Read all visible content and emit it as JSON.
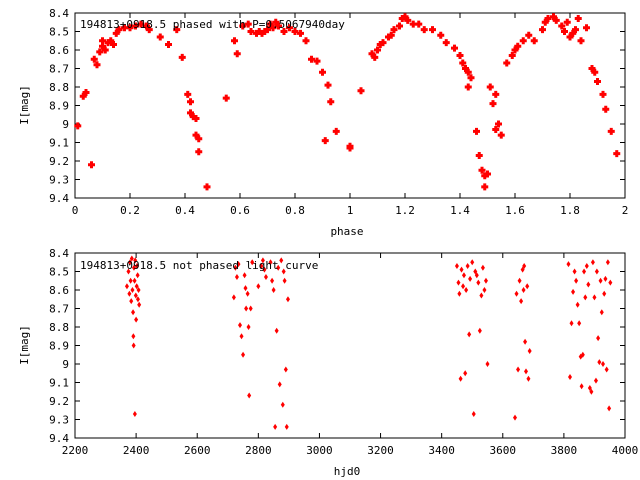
{
  "colors": {
    "points": "#ff0000",
    "axes": "#000000",
    "background": "#ffffff"
  },
  "chart_data": [
    {
      "type": "scatter",
      "title": "194813+0918.5 phased with P=0.5067940day",
      "xlabel": "phase",
      "ylabel": "I[mag]",
      "xlim": [
        0,
        2
      ],
      "ylim": [
        9.4,
        8.4
      ],
      "y_inverted": true,
      "grid": false,
      "xticks": [
        0,
        0.2,
        0.4,
        0.6,
        0.8,
        1,
        1.2,
        1.4,
        1.6,
        1.8,
        2
      ],
      "xtick_labels": [
        "0",
        "0.2",
        "0.4",
        "0.6",
        "0.8",
        "1",
        "1.2",
        "1.4",
        "1.6",
        "1.8",
        "2"
      ],
      "yticks": [
        8.4,
        8.5,
        8.6,
        8.7,
        8.8,
        8.9,
        9.0,
        9.1,
        9.2,
        9.3,
        9.4
      ],
      "ytick_labels": [
        "8.4",
        "8.5",
        "8.6",
        "8.7",
        "8.8",
        "8.9",
        "9",
        "9.1",
        "9.2",
        "9.3",
        "9.4"
      ],
      "marker": "cross",
      "series": [
        {
          "points": [
            [
              0.01,
              9.01
            ],
            [
              0.03,
              8.85
            ],
            [
              0.04,
              8.83
            ],
            [
              0.06,
              9.22
            ],
            [
              0.07,
              8.65
            ],
            [
              0.08,
              8.68
            ],
            [
              0.09,
              8.61
            ],
            [
              0.1,
              8.58
            ],
            [
              0.1,
              8.55
            ],
            [
              0.11,
              8.6
            ],
            [
              0.12,
              8.56
            ],
            [
              0.13,
              8.55
            ],
            [
              0.14,
              8.57
            ],
            [
              0.15,
              8.51
            ],
            [
              0.16,
              8.49
            ],
            [
              0.18,
              8.48
            ],
            [
              0.2,
              8.48
            ],
            [
              0.22,
              8.47
            ],
            [
              0.24,
              8.46
            ],
            [
              0.26,
              8.47
            ],
            [
              0.27,
              8.49
            ],
            [
              0.31,
              8.53
            ],
            [
              0.34,
              8.57
            ],
            [
              0.37,
              8.49
            ],
            [
              0.39,
              8.64
            ],
            [
              0.41,
              8.84
            ],
            [
              0.42,
              8.88
            ],
            [
              0.42,
              8.94
            ],
            [
              0.43,
              8.96
            ],
            [
              0.44,
              8.97
            ],
            [
              0.44,
              9.06
            ],
            [
              0.45,
              9.08
            ],
            [
              0.45,
              9.15
            ],
            [
              0.48,
              9.34
            ],
            [
              0.55,
              8.86
            ],
            [
              0.58,
              8.55
            ],
            [
              0.59,
              8.62
            ],
            [
              0.61,
              8.47
            ],
            [
              0.63,
              8.46
            ],
            [
              0.64,
              8.5
            ],
            [
              0.66,
              8.51
            ],
            [
              0.67,
              8.5
            ],
            [
              0.68,
              8.51
            ],
            [
              0.69,
              8.5
            ],
            [
              0.7,
              8.49
            ],
            [
              0.71,
              8.46
            ],
            [
              0.72,
              8.48
            ],
            [
              0.73,
              8.45
            ],
            [
              0.74,
              8.47
            ],
            [
              0.76,
              8.5
            ],
            [
              0.78,
              8.48
            ],
            [
              0.8,
              8.5
            ],
            [
              0.82,
              8.51
            ],
            [
              0.84,
              8.55
            ],
            [
              0.86,
              8.65
            ],
            [
              0.88,
              8.66
            ],
            [
              0.9,
              8.72
            ],
            [
              0.91,
              9.09
            ],
            [
              0.92,
              8.79
            ],
            [
              0.93,
              8.88
            ],
            [
              0.95,
              9.04
            ],
            [
              1.0,
              9.12
            ],
            [
              1.0,
              9.13
            ],
            [
              1.04,
              8.82
            ],
            [
              1.08,
              8.62
            ],
            [
              1.09,
              8.64
            ],
            [
              1.1,
              8.6
            ],
            [
              1.11,
              8.57
            ],
            [
              1.12,
              8.56
            ],
            [
              1.14,
              8.53
            ],
            [
              1.15,
              8.52
            ],
            [
              1.16,
              8.49
            ],
            [
              1.18,
              8.47
            ],
            [
              1.19,
              8.43
            ],
            [
              1.2,
              8.42
            ],
            [
              1.21,
              8.44
            ],
            [
              1.23,
              8.46
            ],
            [
              1.25,
              8.46
            ],
            [
              1.27,
              8.49
            ],
            [
              1.3,
              8.49
            ],
            [
              1.33,
              8.52
            ],
            [
              1.35,
              8.56
            ],
            [
              1.38,
              8.59
            ],
            [
              1.4,
              8.63
            ],
            [
              1.41,
              8.67
            ],
            [
              1.42,
              8.7
            ],
            [
              1.43,
              8.72
            ],
            [
              1.44,
              8.75
            ],
            [
              1.43,
              8.8
            ],
            [
              1.46,
              9.04
            ],
            [
              1.47,
              9.17
            ],
            [
              1.48,
              9.25
            ],
            [
              1.49,
              9.28
            ],
            [
              1.5,
              9.27
            ],
            [
              1.49,
              9.34
            ],
            [
              1.51,
              8.8
            ],
            [
              1.52,
              8.89
            ],
            [
              1.53,
              8.84
            ],
            [
              1.53,
              9.03
            ],
            [
              1.54,
              9.0
            ],
            [
              1.55,
              9.06
            ],
            [
              1.57,
              8.67
            ],
            [
              1.59,
              8.63
            ],
            [
              1.6,
              8.6
            ],
            [
              1.61,
              8.58
            ],
            [
              1.63,
              8.55
            ],
            [
              1.65,
              8.52
            ],
            [
              1.67,
              8.55
            ],
            [
              1.7,
              8.49
            ],
            [
              1.71,
              8.45
            ],
            [
              1.72,
              8.43
            ],
            [
              1.74,
              8.42
            ],
            [
              1.75,
              8.44
            ],
            [
              1.77,
              8.47
            ],
            [
              1.78,
              8.5
            ],
            [
              1.79,
              8.45
            ],
            [
              1.8,
              8.53
            ],
            [
              1.81,
              8.51
            ],
            [
              1.82,
              8.49
            ],
            [
              1.83,
              8.43
            ],
            [
              1.84,
              8.55
            ],
            [
              1.86,
              8.48
            ],
            [
              1.88,
              8.7
            ],
            [
              1.89,
              8.72
            ],
            [
              1.9,
              8.77
            ],
            [
              1.92,
              8.84
            ],
            [
              1.93,
              8.92
            ],
            [
              1.95,
              9.04
            ],
            [
              1.97,
              9.16
            ]
          ]
        }
      ]
    },
    {
      "type": "scatter",
      "title": "194813+0918.5 not phased light curve",
      "xlabel": "hjd0",
      "ylabel": "I[mag]",
      "xlim": [
        2200,
        4000
      ],
      "ylim": [
        9.4,
        8.4
      ],
      "y_inverted": true,
      "grid": false,
      "xticks": [
        2200,
        2400,
        2600,
        2800,
        3000,
        3200,
        3400,
        3600,
        3800,
        4000
      ],
      "xtick_labels": [
        "2200",
        "2400",
        "2600",
        "2800",
        "3000",
        "3200",
        "3400",
        "3600",
        "3800",
        "4000"
      ],
      "yticks": [
        8.4,
        8.5,
        8.6,
        8.7,
        8.8,
        8.9,
        9.0,
        9.1,
        9.2,
        9.3,
        9.4
      ],
      "ytick_labels": [
        "8.4",
        "8.5",
        "8.6",
        "8.7",
        "8.8",
        "8.9",
        "9",
        "9.1",
        "9.2",
        "9.3",
        "9.4"
      ],
      "marker": "diamond",
      "series": [
        {
          "points": [
            [
              2370,
              8.58
            ],
            [
              2375,
              8.5
            ],
            [
              2378,
              8.62
            ],
            [
              2380,
              8.45
            ],
            [
              2382,
              8.55
            ],
            [
              2384,
              8.66
            ],
            [
              2386,
              8.43
            ],
            [
              2388,
              8.6
            ],
            [
              2390,
              8.72
            ],
            [
              2391,
              8.85
            ],
            [
              2392,
              8.9
            ],
            [
              2393,
              8.48
            ],
            [
              2395,
              8.55
            ],
            [
              2396,
              9.27
            ],
            [
              2397,
              8.44
            ],
            [
              2399,
              8.63
            ],
            [
              2400,
              8.76
            ],
            [
              2402,
              8.58
            ],
            [
              2403,
              8.47
            ],
            [
              2405,
              8.52
            ],
            [
              2406,
              8.65
            ],
            [
              2408,
              8.6
            ],
            [
              2410,
              8.68
            ],
            [
              2720,
              8.64
            ],
            [
              2725,
              8.48
            ],
            [
              2730,
              8.53
            ],
            [
              2735,
              8.46
            ],
            [
              2740,
              8.79
            ],
            [
              2745,
              8.85
            ],
            [
              2750,
              8.95
            ],
            [
              2755,
              8.52
            ],
            [
              2758,
              8.59
            ],
            [
              2760,
              8.7
            ],
            [
              2765,
              8.62
            ],
            [
              2768,
              8.8
            ],
            [
              2770,
              9.17
            ],
            [
              2775,
              8.7
            ],
            [
              2780,
              8.45
            ],
            [
              2800,
              8.58
            ],
            [
              2810,
              8.47
            ],
            [
              2815,
              8.44
            ],
            [
              2820,
              8.49
            ],
            [
              2825,
              8.53
            ],
            [
              2840,
              8.45
            ],
            [
              2845,
              8.55
            ],
            [
              2850,
              8.6
            ],
            [
              2855,
              9.34
            ],
            [
              2860,
              8.82
            ],
            [
              2865,
              8.48
            ],
            [
              2870,
              9.11
            ],
            [
              2875,
              8.44
            ],
            [
              2880,
              9.22
            ],
            [
              2883,
              8.5
            ],
            [
              2886,
              8.55
            ],
            [
              2890,
              9.03
            ],
            [
              2893,
              9.34
            ],
            [
              2897,
              8.65
            ],
            [
              3450,
              8.47
            ],
            [
              3455,
              8.56
            ],
            [
              3458,
              8.62
            ],
            [
              3462,
              9.08
            ],
            [
              3465,
              8.49
            ],
            [
              3470,
              8.58
            ],
            [
              3473,
              8.52
            ],
            [
              3477,
              9.05
            ],
            [
              3480,
              8.6
            ],
            [
              3485,
              8.47
            ],
            [
              3490,
              8.84
            ],
            [
              3493,
              8.54
            ],
            [
              3500,
              8.45
            ],
            [
              3505,
              9.27
            ],
            [
              3510,
              8.5
            ],
            [
              3515,
              8.52
            ],
            [
              3520,
              8.56
            ],
            [
              3525,
              8.82
            ],
            [
              3530,
              8.63
            ],
            [
              3535,
              8.48
            ],
            [
              3540,
              8.6
            ],
            [
              3545,
              8.55
            ],
            [
              3550,
              9.0
            ],
            [
              3640,
              9.29
            ],
            [
              3645,
              8.62
            ],
            [
              3650,
              9.03
            ],
            [
              3655,
              8.55
            ],
            [
              3660,
              8.66
            ],
            [
              3665,
              8.49
            ],
            [
              3668,
              8.6
            ],
            [
              3670,
              8.47
            ],
            [
              3673,
              8.88
            ],
            [
              3676,
              9.04
            ],
            [
              3680,
              8.58
            ],
            [
              3684,
              9.08
            ],
            [
              3688,
              8.93
            ],
            [
              3815,
              8.46
            ],
            [
              3820,
              9.07
            ],
            [
              3825,
              8.78
            ],
            [
              3830,
              8.61
            ],
            [
              3835,
              8.5
            ],
            [
              3840,
              8.55
            ],
            [
              3845,
              8.68
            ],
            [
              3850,
              8.78
            ],
            [
              3855,
              8.96
            ],
            [
              3858,
              9.12
            ],
            [
              3862,
              8.95
            ],
            [
              3866,
              8.5
            ],
            [
              3870,
              8.64
            ],
            [
              3875,
              8.47
            ],
            [
              3880,
              8.57
            ],
            [
              3885,
              9.13
            ],
            [
              3890,
              9.15
            ],
            [
              3895,
              8.45
            ],
            [
              3900,
              8.64
            ],
            [
              3905,
              9.09
            ],
            [
              3908,
              8.5
            ],
            [
              3912,
              8.86
            ],
            [
              3916,
              8.99
            ],
            [
              3920,
              8.55
            ],
            [
              3924,
              8.72
            ],
            [
              3928,
              9.0
            ],
            [
              3932,
              8.62
            ],
            [
              3936,
              8.54
            ],
            [
              3940,
              9.03
            ],
            [
              3944,
              8.45
            ],
            [
              3948,
              9.24
            ],
            [
              3952,
              8.56
            ]
          ]
        }
      ]
    }
  ]
}
